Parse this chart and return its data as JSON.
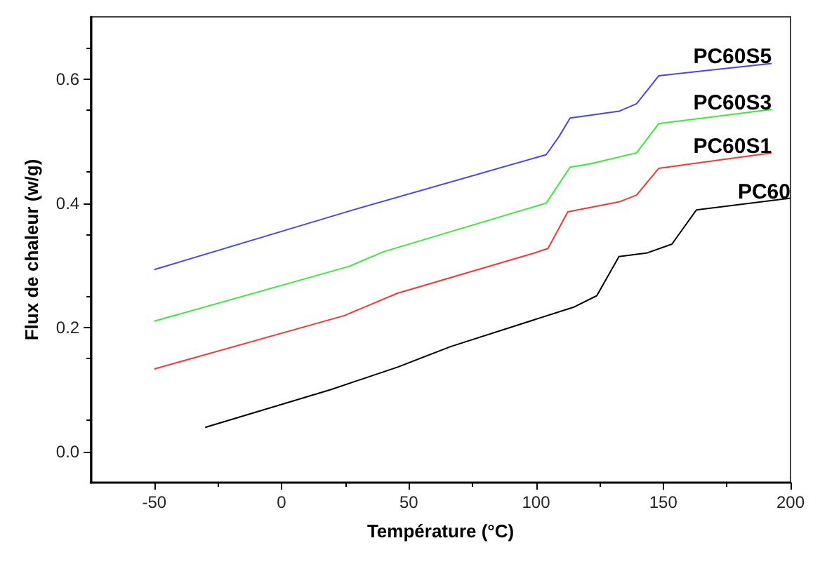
{
  "chart_data": {
    "type": "line",
    "xlabel": "Température (°C)",
    "ylabel": "Flux de chaleur (w/g)",
    "xlim": [
      -75,
      200
    ],
    "xticks": [
      -50,
      0,
      50,
      100,
      150,
      200
    ],
    "ylim": [
      -0.05,
      0.7
    ],
    "yticks": [
      {
        "value": 0,
        "label": "0.0"
      },
      0.2,
      0.4,
      0.6
    ],
    "grid": false,
    "legend": false,
    "marker": "none",
    "line_style": "solid",
    "series": [
      {
        "name": "PC60S5",
        "color": "#4444ff",
        "x": [
          -50,
          28,
          104,
          109,
          113.4,
          120.4,
          132.6,
          139.5,
          143.8,
          148.2,
          192.6
        ],
        "values": [
          0.293,
          0.389,
          0.478,
          0.507,
          0.537,
          0.541,
          0.548,
          0.56,
          0.582,
          0.605,
          0.625
        ]
      },
      {
        "name": "PC60S3",
        "color": "#33ee33",
        "x": [
          -50,
          26.4,
          40.3,
          104,
          113.4,
          121.1,
          139.5,
          148.2,
          192.6
        ],
        "values": [
          0.21,
          0.298,
          0.322,
          0.4,
          0.458,
          0.463,
          0.481,
          0.528,
          0.551
        ]
      },
      {
        "name": "PC60S1",
        "color": "#ff3333",
        "x": [
          -50,
          24.7,
          45.6,
          99.5,
          104.7,
          112.5,
          132.6,
          139.5,
          148.2,
          192.6
        ],
        "values": [
          0.133,
          0.219,
          0.255,
          0.32,
          0.327,
          0.386,
          0.402,
          0.413,
          0.456,
          0.481
        ]
      },
      {
        "name": "PC60",
        "color": "#000000",
        "x": [
          -30,
          19.5,
          45.6,
          66.4,
          115.1,
          123.9,
          132.6,
          143.8,
          153.4,
          163,
          200
        ],
        "values": [
          0.039,
          0.1,
          0.136,
          0.169,
          0.233,
          0.251,
          0.314,
          0.32,
          0.334,
          0.389,
          0.408
        ]
      }
    ]
  }
}
